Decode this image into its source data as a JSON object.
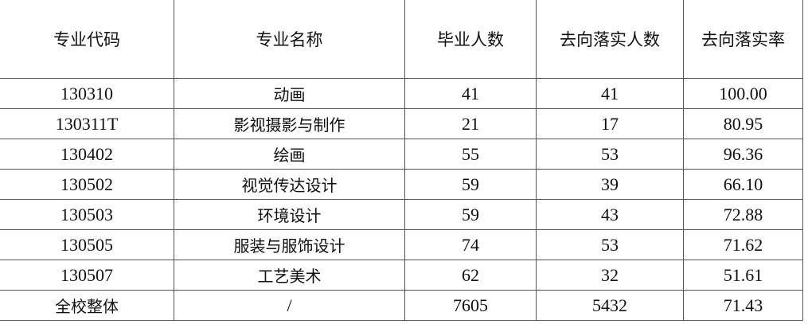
{
  "table": {
    "headers": [
      "专业代码",
      "专业名称",
      "毕业人数",
      "去向落实人数",
      "去向落实率"
    ],
    "rows": [
      [
        "130310",
        "动画",
        "41",
        "41",
        "100.00"
      ],
      [
        "130311T",
        "影视摄影与制作",
        "21",
        "17",
        "80.95"
      ],
      [
        "130402",
        "绘画",
        "55",
        "53",
        "96.36"
      ],
      [
        "130502",
        "视觉传达设计",
        "59",
        "39",
        "66.10"
      ],
      [
        "130503",
        "环境设计",
        "59",
        "43",
        "72.88"
      ],
      [
        "130505",
        "服装与服饰设计",
        "74",
        "53",
        "71.62"
      ],
      [
        "130507",
        "工艺美术",
        "62",
        "32",
        "51.61"
      ],
      [
        "全校整体",
        "/",
        "7605",
        "5432",
        "71.43"
      ]
    ]
  }
}
